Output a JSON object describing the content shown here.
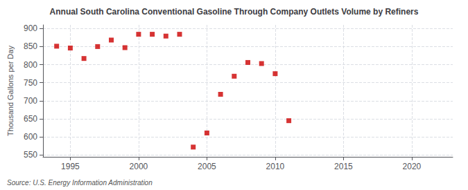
{
  "chart_data": {
    "type": "scatter",
    "title": "Annual South Carolina Conventional Gasoline Through Company Outlets Volume by Refiners",
    "ylabel": "Thousand Gallons per Day",
    "annotation": "Source: U.S. Energy Information Administration",
    "x": [
      1994,
      1995,
      1996,
      1997,
      1998,
      1999,
      2000,
      2001,
      2002,
      2003,
      2004,
      2005,
      2006,
      2007,
      2008,
      2009,
      2010,
      2011
    ],
    "values": [
      851,
      846,
      817,
      850,
      868,
      847,
      884,
      884,
      879,
      884,
      572,
      611,
      718,
      768,
      806,
      803,
      775,
      645
    ],
    "color": "#cc0000",
    "marker": "square",
    "xlim": [
      1993,
      2023
    ],
    "xticks": [
      1995,
      2000,
      2005,
      2010,
      2015,
      2020
    ],
    "ylim": [
      545,
      910
    ],
    "yticks": [
      550,
      600,
      650,
      700,
      750,
      800,
      850,
      900
    ],
    "grid": true
  }
}
